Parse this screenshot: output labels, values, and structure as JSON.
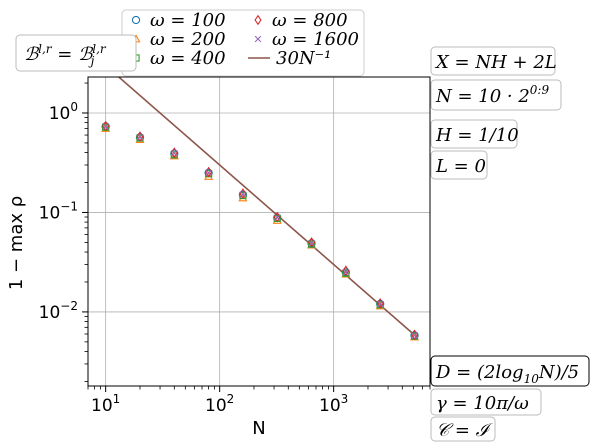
{
  "chart_data": {
    "type": "scatter",
    "xscale": "log",
    "yscale": "log",
    "xlim": [
      7,
      7000
    ],
    "ylim": [
      0.0018,
      2.3
    ],
    "grid": true,
    "xlabel": "N",
    "ylabel": "1 − max ρ",
    "xticks": [
      {
        "value": 10,
        "base": "10",
        "exp": "1"
      },
      {
        "value": 100,
        "base": "10",
        "exp": "2"
      },
      {
        "value": 1000,
        "base": "10",
        "exp": "3"
      }
    ],
    "yticks": [
      {
        "value": 1,
        "base": "10",
        "exp": "0"
      },
      {
        "value": 0.1,
        "base": "10",
        "exp": "−1"
      },
      {
        "value": 0.01,
        "base": "10",
        "exp": "−2"
      }
    ],
    "x": [
      10,
      20,
      40,
      80,
      160,
      320,
      640,
      1280,
      2560,
      5120
    ],
    "series": [
      {
        "name": "ω = 100",
        "marker": "circle",
        "color": "#1f77b4",
        "values": [
          0.73,
          0.57,
          0.39,
          0.25,
          0.15,
          0.088,
          0.049,
          0.025,
          0.012,
          0.0058
        ]
      },
      {
        "name": "ω = 200",
        "marker": "triangle",
        "color": "#ff7f0e",
        "values": [
          0.7,
          0.54,
          0.37,
          0.23,
          0.14,
          0.083,
          0.047,
          0.024,
          0.0115,
          0.0056
        ]
      },
      {
        "name": "ω = 400",
        "marker": "square",
        "color": "#2ca02c",
        "values": [
          0.72,
          0.56,
          0.38,
          0.245,
          0.148,
          0.087,
          0.048,
          0.0245,
          0.0118,
          0.0057
        ]
      },
      {
        "name": "ω = 800",
        "marker": "diamond",
        "color": "#d62728",
        "values": [
          0.74,
          0.58,
          0.4,
          0.255,
          0.155,
          0.09,
          0.05,
          0.026,
          0.0122,
          0.0059
        ]
      },
      {
        "name": "ω = 1600",
        "marker": "x",
        "color": "#9467bd",
        "values": [
          0.73,
          0.57,
          0.395,
          0.25,
          0.152,
          0.089,
          0.049,
          0.0252,
          0.012,
          0.0058
        ]
      }
    ],
    "reference_line": {
      "name": "30N⁻¹",
      "color": "#8c564b",
      "coefficient": 30,
      "exponent": -1,
      "x_range": [
        10,
        5120
      ]
    },
    "legend": {
      "placement": "top-center",
      "columns": 2
    },
    "annotations": {
      "top_left": "ℬ^{l,r} = ℬ_j^{l,r}",
      "right_top": [
        "X = NH + 2L",
        "N = 10 · 2^{0:9}",
        "H = 1/10",
        "L = 0"
      ],
      "right_bottom": [
        "D = (2log₁₀N)/5",
        "γ = 10π/ω",
        "𝒞 = ℐ"
      ]
    }
  }
}
